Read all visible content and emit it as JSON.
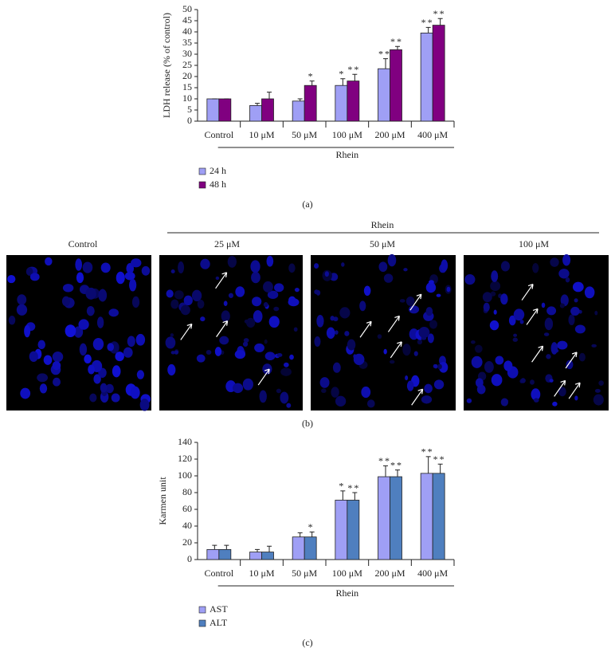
{
  "chart_data": [
    {
      "type": "bar",
      "panel_label": "(a)",
      "y_label": "LDH release (% of control)",
      "group_label": "Rhein",
      "categories": [
        "Control",
        "10 μM",
        "50 μM",
        "100 μM",
        "200 μM",
        "400 μM"
      ],
      "ylim": [
        0,
        50
      ],
      "yticks": [
        0,
        5,
        10,
        15,
        20,
        25,
        30,
        35,
        40,
        45,
        50
      ],
      "series": [
        {
          "name": "24 h",
          "color": "#9f9ff5",
          "values": [
            10,
            7,
            9,
            16,
            23.5,
            39.5
          ],
          "errors": [
            0,
            1,
            1,
            3,
            4.5,
            2.5
          ],
          "annotations": [
            null,
            null,
            null,
            "*",
            "**",
            "**"
          ]
        },
        {
          "name": "48 h",
          "color": "#800080",
          "values": [
            10,
            10,
            16,
            18,
            32,
            43
          ],
          "errors": [
            0,
            3,
            2,
            3,
            1.5,
            3
          ],
          "annotations": [
            null,
            null,
            "*",
            "**",
            "**",
            "**"
          ]
        }
      ]
    },
    {
      "type": "bar",
      "panel_label": "(c)",
      "y_label": "Karmen unit",
      "group_label": "Rhein",
      "categories": [
        "Control",
        "10 μM",
        "50 μM",
        "100 μM",
        "200 μM",
        "400 μM"
      ],
      "ylim": [
        0,
        140
      ],
      "yticks": [
        0,
        20,
        40,
        60,
        80,
        100,
        120,
        140
      ],
      "series": [
        {
          "name": "AST",
          "color": "#9f9ff5",
          "values": [
            12,
            9,
            27,
            71,
            99,
            103
          ],
          "errors": [
            5,
            3,
            5,
            11,
            13,
            20
          ],
          "annotations": [
            null,
            null,
            null,
            "*",
            "**",
            "**"
          ]
        },
        {
          "name": "ALT",
          "color": "#4f7fbf",
          "values": [
            12,
            9,
            27,
            71,
            99,
            103
          ],
          "errors": [
            5,
            7,
            6,
            9,
            8,
            11
          ],
          "annotations": [
            null,
            null,
            "*",
            "**",
            "**",
            "**"
          ]
        }
      ]
    }
  ],
  "panel_b": {
    "panel_label": "(b)",
    "group_label": "Rhein",
    "columns": [
      "Control",
      "25 μM",
      "50 μM",
      "100 μM"
    ]
  }
}
